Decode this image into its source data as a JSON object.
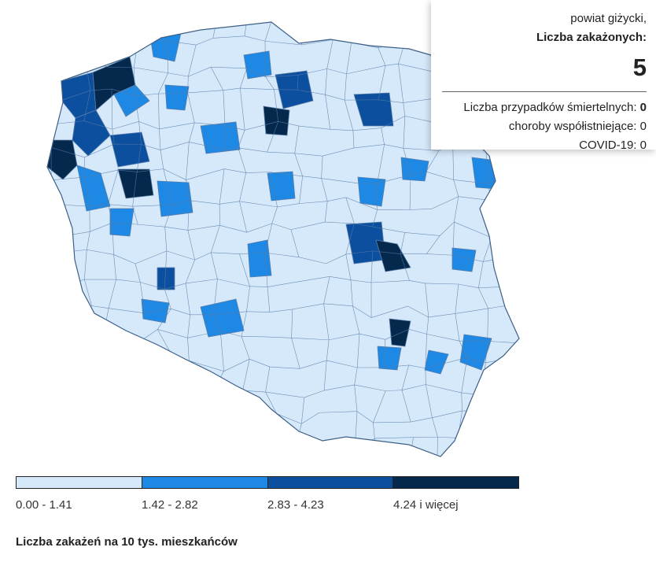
{
  "tooltip": {
    "region": "powiat giżycki,",
    "metric_label": "Liczba zakażonych:",
    "metric_value": "5",
    "deaths_label": "Liczba przypadków śmiertelnych:",
    "deaths_value": "0",
    "comorbid_label": "choroby współistniejące:",
    "comorbid_value": "0",
    "covid_label": "COVID-19:",
    "covid_value": "0"
  },
  "legend": {
    "title": "Liczba zakażeń na 10 tys. mieszkańców",
    "classes": [
      {
        "label": "0.00 - 1.41",
        "color": "#d6e9fb"
      },
      {
        "label": "1.42 - 2.82",
        "color": "#1e88e5"
      },
      {
        "label": "2.83 - 4.23",
        "color": "#0b4f9e"
      },
      {
        "label": "4.24 i więcej",
        "color": "#05294d"
      }
    ]
  },
  "map": {
    "border_color": "#5a7ea8",
    "highlighted_districts": [
      {
        "cls": 2,
        "name": "west-coast-a"
      },
      {
        "cls": 3,
        "name": "west-coast-b"
      },
      {
        "cls": 2,
        "name": "szczecin-area"
      },
      {
        "cls": 3,
        "name": "western-border"
      },
      {
        "cls": 1,
        "name": "pomorze-west"
      },
      {
        "cls": 1,
        "name": "pomorze-north"
      },
      {
        "cls": 1,
        "name": "lubuskie-a"
      },
      {
        "cls": 2,
        "name": "lubuskie-b"
      },
      {
        "cls": 3,
        "name": "lubuskie-c"
      },
      {
        "cls": 2,
        "name": "gdansk-area"
      },
      {
        "cls": 3,
        "name": "tczew-area"
      },
      {
        "cls": 2,
        "name": "olsztyn-area"
      },
      {
        "cls": 1,
        "name": "elblag-area"
      },
      {
        "cls": 1,
        "name": "bydgoszcz-area"
      },
      {
        "cls": 1,
        "name": "poznan-area"
      },
      {
        "cls": 2,
        "name": "warszawa-a"
      },
      {
        "cls": 3,
        "name": "warszawa-b"
      },
      {
        "cls": 1,
        "name": "plock-area"
      },
      {
        "cls": 1,
        "name": "leszno-area"
      },
      {
        "cls": 2,
        "name": "ostrow-area"
      },
      {
        "cls": 1,
        "name": "wroclaw-area"
      },
      {
        "cls": 1,
        "name": "walbrzych-area"
      },
      {
        "cls": 1,
        "name": "lodz-area"
      },
      {
        "cls": 3,
        "name": "lublin-area"
      },
      {
        "cls": 1,
        "name": "zamosc-area"
      },
      {
        "cls": 1,
        "name": "krasnik-area"
      },
      {
        "cls": 1,
        "name": "rzeszow-east"
      },
      {
        "cls": 1,
        "name": "bialystok-area"
      },
      {
        "cls": 1,
        "name": "siedlce-area"
      },
      {
        "cls": 1,
        "name": "suwalki-area"
      },
      {
        "cls": 1,
        "name": "podlasie-west"
      },
      {
        "cls": 1,
        "name": "stettin-south"
      }
    ]
  }
}
